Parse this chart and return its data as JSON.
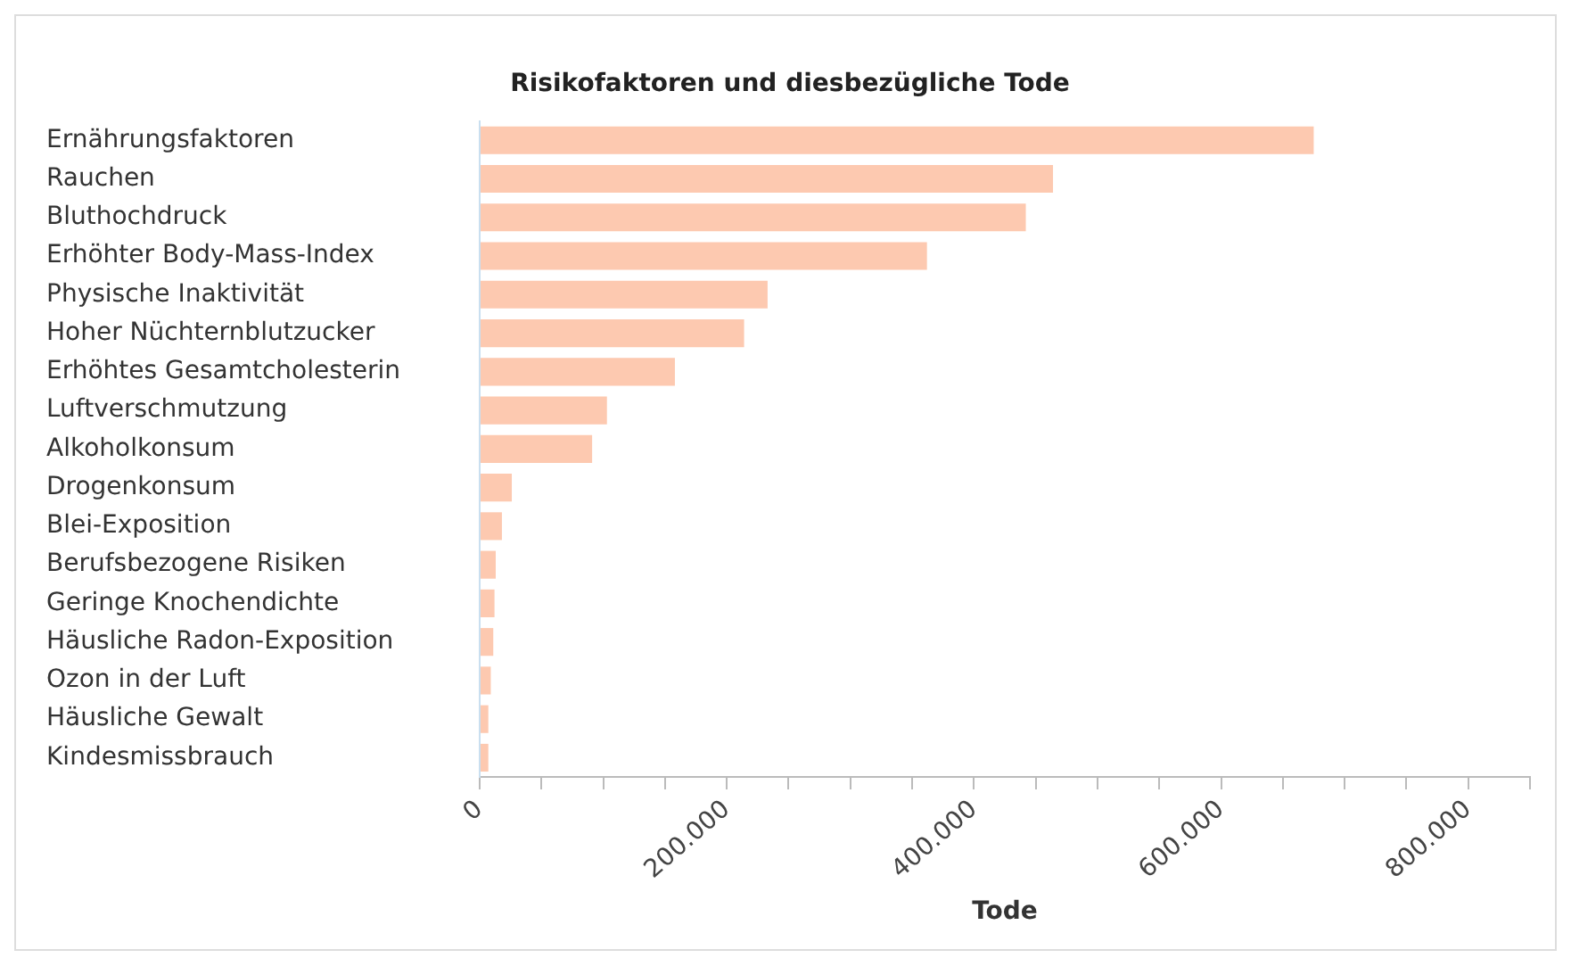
{
  "chart_data": {
    "type": "bar",
    "orientation": "horizontal",
    "title": "Risikofaktoren und diesbezügliche Tode",
    "xlabel": "Tode",
    "categories": [
      "Ernährungsfaktoren",
      "Rauchen",
      "Bluthochdruck",
      "Erhöhter Body-Mass-Index",
      "Physische Inaktivität",
      "Hoher Nüchternblutzucker",
      "Erhöhtes Gesamtcholesterin",
      "Luftverschmutzung",
      "Alkoholkonsum",
      "Drogenkonsum",
      "Blei-Exposition",
      "Berufsbezogene Risiken",
      "Geringe Knochendichte",
      "Häusliche Radon-Exposition",
      "Ozon in der Luft",
      "Häusliche Gewalt",
      "Kindesmissbrauch"
    ],
    "values": [
      675000,
      464000,
      442000,
      362000,
      233000,
      214000,
      158000,
      103000,
      91000,
      26000,
      18000,
      13000,
      12000,
      11000,
      9000,
      7000,
      7000
    ],
    "color": "#fdc9b0",
    "xlim": [
      0,
      850000
    ],
    "xticks": [
      0,
      {
        "value": 50000,
        "label": null
      },
      {
        "value": 100000,
        "label": null
      },
      {
        "value": 150000,
        "label": null
      },
      {
        "value": 200000,
        "label": "200.000"
      },
      {
        "value": 250000,
        "label": null
      },
      {
        "value": 300000,
        "label": null
      },
      {
        "value": 350000,
        "label": null
      },
      {
        "value": 400000,
        "label": "400.000"
      },
      {
        "value": 450000,
        "label": null
      },
      {
        "value": 500000,
        "label": null
      },
      {
        "value": 550000,
        "label": null
      },
      {
        "value": 600000,
        "label": "600.000"
      },
      {
        "value": 650000,
        "label": null
      },
      {
        "value": 700000,
        "label": null
      },
      {
        "value": 750000,
        "label": null
      },
      {
        "value": 800000,
        "label": "800.000"
      },
      {
        "value": 850000,
        "label": null
      }
    ],
    "legend": false
  }
}
